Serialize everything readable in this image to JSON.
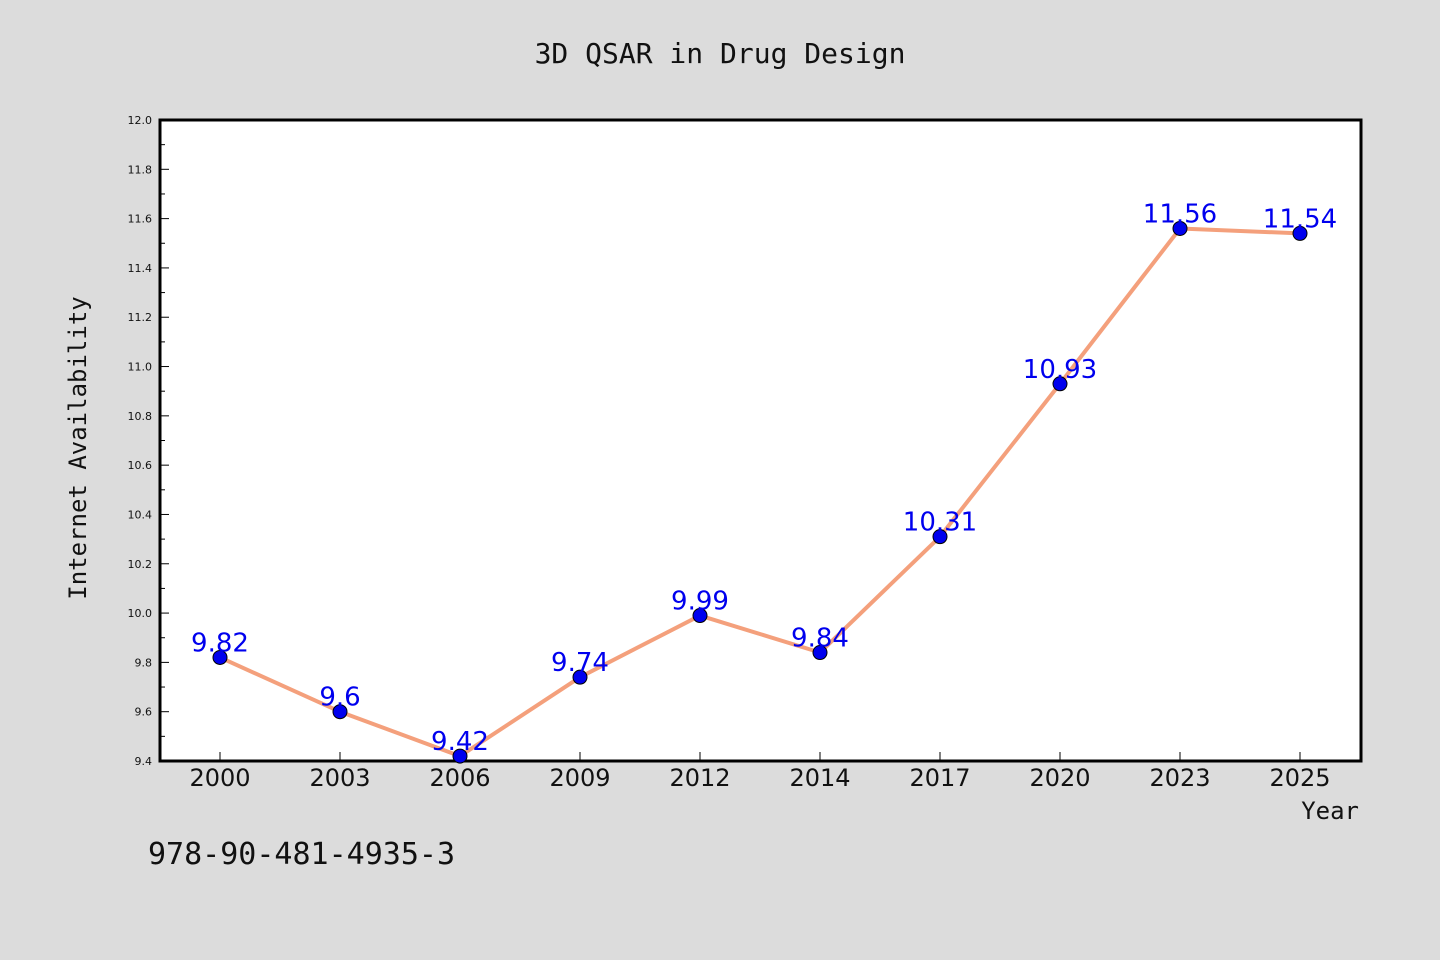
{
  "footer": {
    "isbn": "978-90-481-4935-3"
  },
  "chart_data": {
    "type": "line",
    "title": "3D QSAR in Drug Design",
    "xlabel": "Year",
    "ylabel": "Internet Availability",
    "categories": [
      "2000",
      "2003",
      "2006",
      "2009",
      "2012",
      "2014",
      "2017",
      "2020",
      "2023",
      "2025"
    ],
    "series": [
      {
        "values": [
          9.82,
          9.6,
          9.42,
          9.74,
          9.99,
          9.84,
          10.31,
          10.93,
          11.56,
          11.54
        ],
        "data_labels": [
          "9.82",
          "9.6",
          "9.42",
          "9.74",
          "9.99",
          "9.84",
          "10.31",
          "10.93",
          "11.56",
          "11.54"
        ],
        "line_color": "#f4a07c",
        "marker_color": "#0000ee",
        "label_color": "#0000ee"
      }
    ],
    "ylim": [
      9.4,
      12.0
    ],
    "y_ticks": [
      "9.4",
      "9.6",
      "9.8",
      "10.0",
      "10.2",
      "10.4",
      "10.6",
      "10.8",
      "11.0",
      "11.2",
      "11.4",
      "11.6",
      "11.8",
      "12.0"
    ],
    "grid": false,
    "legend": "none",
    "colors": {
      "background": "#dcdcdc",
      "plot_background": "#ffffff",
      "axis": "#000000"
    }
  }
}
